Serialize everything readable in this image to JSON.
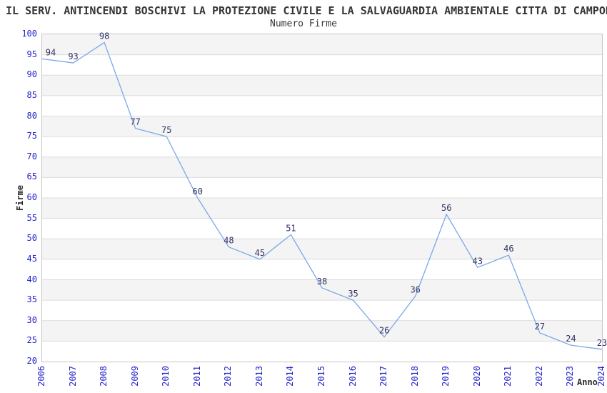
{
  "header": {
    "title": "IL SERV. ANTINCENDI BOSCHIVI LA PROTEZIONE CIVILE E LA SALVAGUARDIA AMBIENTALE CITTA DI CAMPOR",
    "subtitle": "Numero Firme"
  },
  "chart_data": {
    "type": "line",
    "title": "Numero Firme",
    "xlabel": "Anno",
    "ylabel": "Firme",
    "categories": [
      "2006",
      "2007",
      "2008",
      "2009",
      "2010",
      "2011",
      "2012",
      "2013",
      "2014",
      "2015",
      "2016",
      "2017",
      "2018",
      "2019",
      "2020",
      "2021",
      "2022",
      "2023",
      "2024"
    ],
    "values": [
      94,
      93,
      98,
      77,
      75,
      60,
      48,
      45,
      51,
      38,
      35,
      26,
      36,
      56,
      43,
      46,
      27,
      24,
      23
    ],
    "ylim": [
      20,
      100
    ],
    "ytick_step": 5,
    "grid": "horizontal-gridlines-with-alternating-bands",
    "legend": "none",
    "point_labels_shown": true,
    "colors": {
      "line": "#7aa7e8",
      "data_label": "#333366",
      "tick_label": "#2424cc",
      "band": "#f4f4f4",
      "grid": "#dcdcdc",
      "plot_border": "#c6c6c6",
      "title_text": "#363636",
      "axis_title_text": "#2b2b2b",
      "background": "#ffffff"
    }
  }
}
